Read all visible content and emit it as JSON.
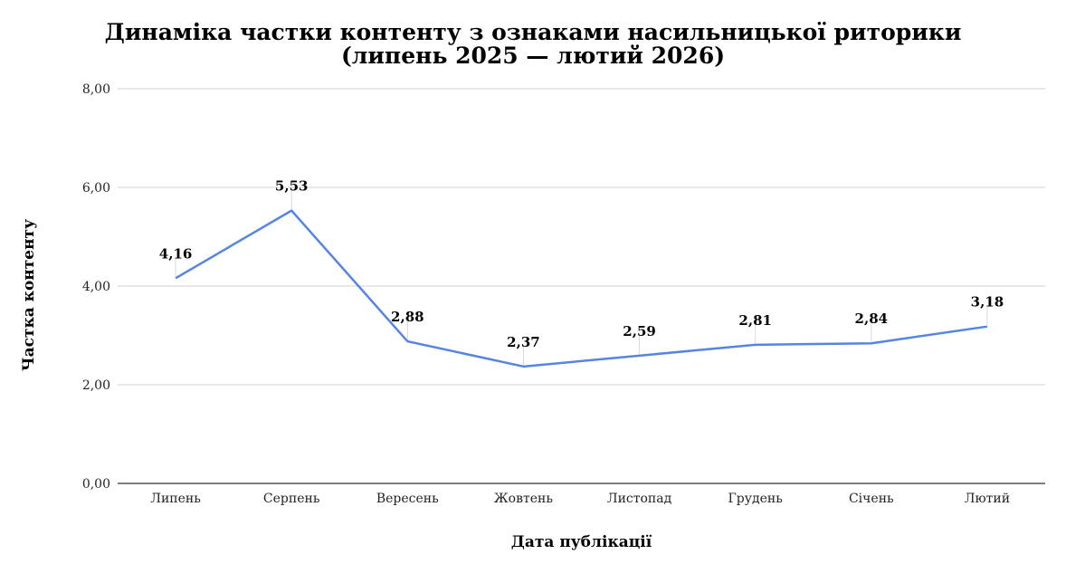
{
  "title": {
    "line1": "Динаміка частки контенту з ознаками насильницької риторики",
    "line2": "(липень 2025 — лютий 2026)"
  },
  "chart_data": {
    "type": "line",
    "categories": [
      "Липень",
      "Серпень",
      "Вересень",
      "Жовтень",
      "Листопад",
      "Грудень",
      "Січень",
      "Лютий"
    ],
    "series": [
      {
        "values": [
          4.16,
          5.53,
          2.88,
          2.37,
          2.59,
          2.81,
          2.84,
          3.18
        ],
        "data_labels": [
          "4,16",
          "5,53",
          "2,88",
          "2,37",
          "2,59",
          "2,81",
          "2,84",
          "3,18"
        ]
      }
    ],
    "xlabel": "Дата публікації",
    "ylabel": "Частка контенту",
    "ylim": [
      0,
      8
    ],
    "yticks": [
      0,
      2,
      4,
      6,
      8
    ],
    "ytick_labels": [
      "0,00",
      "2,00",
      "4,00",
      "6,00",
      "8,00"
    ],
    "grid": "horizontal",
    "legend": "none",
    "colors": {
      "line": "#5585e0",
      "grid": "#d0d0d0",
      "axis": "#333333",
      "leader": "#d8d8d8"
    }
  }
}
